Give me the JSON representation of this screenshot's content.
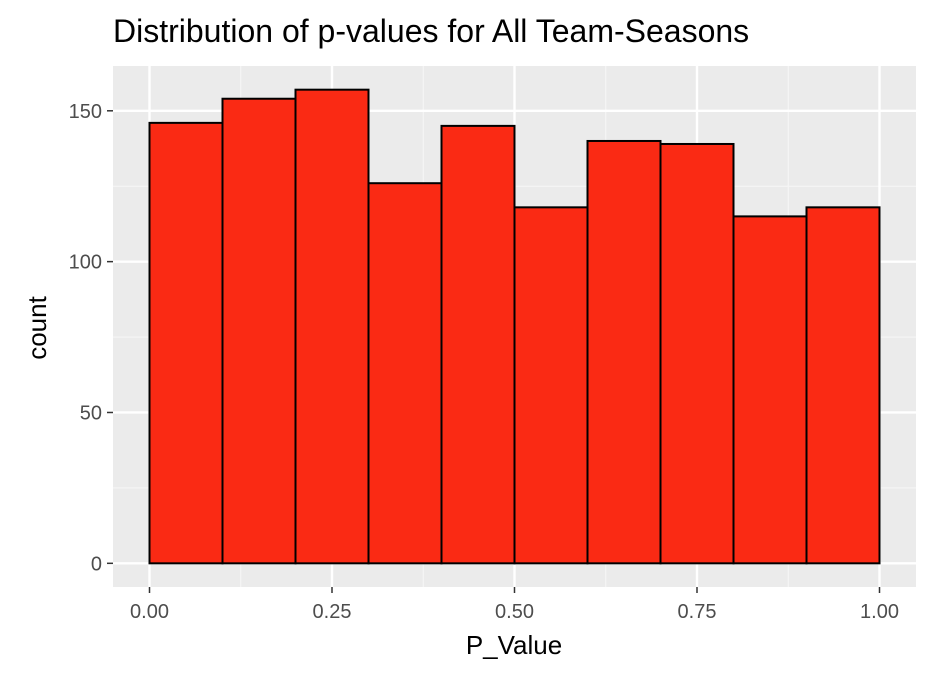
{
  "colors": {
    "panel_background": "#ebebeb",
    "grid_major": "#ffffff",
    "grid_minor": "#f5f5f5",
    "bar_fill": "#fa2a14",
    "bar_stroke": "#000000",
    "tick_text": "#4d4d4d",
    "title_text": "#000000"
  },
  "chart_data": {
    "type": "bar",
    "subtype": "histogram",
    "title": "Distribution of p-values for All Team-Seasons",
    "xlabel": "P_Value",
    "ylabel": "count",
    "bins": [
      {
        "start": 0.0,
        "end": 0.1,
        "count": 146
      },
      {
        "start": 0.1,
        "end": 0.2,
        "count": 154
      },
      {
        "start": 0.2,
        "end": 0.3,
        "count": 157
      },
      {
        "start": 0.3,
        "end": 0.4,
        "count": 126
      },
      {
        "start": 0.4,
        "end": 0.5,
        "count": 145
      },
      {
        "start": 0.5,
        "end": 0.6,
        "count": 118
      },
      {
        "start": 0.6,
        "end": 0.7,
        "count": 140
      },
      {
        "start": 0.7,
        "end": 0.8,
        "count": 139
      },
      {
        "start": 0.8,
        "end": 0.9,
        "count": 115
      },
      {
        "start": 0.9,
        "end": 1.0,
        "count": 118
      }
    ],
    "xlim": [
      -0.05,
      1.05
    ],
    "ylim": [
      -7.85,
      164.85
    ],
    "x_ticks": [
      0.0,
      0.25,
      0.5,
      0.75,
      1.0
    ],
    "x_tick_labels": [
      "0.00",
      "0.25",
      "0.50",
      "0.75",
      "1.00"
    ],
    "y_ticks": [
      0,
      50,
      100,
      150
    ],
    "y_tick_labels": [
      "0",
      "50",
      "100",
      "150"
    ],
    "grid": true,
    "legend": "none"
  }
}
